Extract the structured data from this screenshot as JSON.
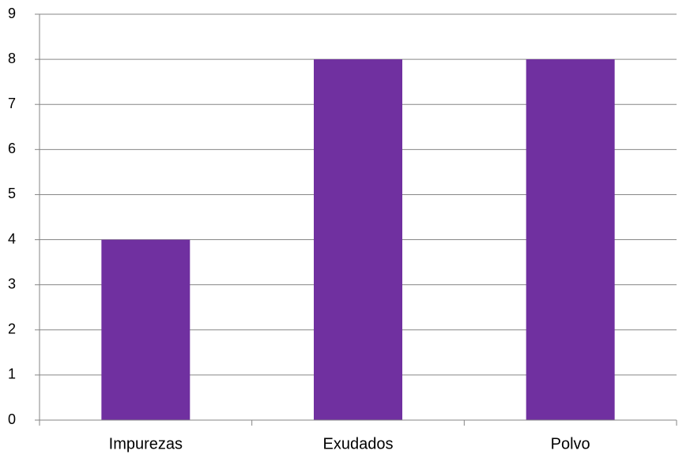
{
  "chart_data": {
    "type": "bar",
    "categories": [
      "Impurezas",
      "Exudados",
      "Polvo"
    ],
    "values": [
      4,
      8,
      8
    ],
    "ylim": [
      0,
      9
    ],
    "yticks": [
      "0",
      "1",
      "2",
      "3",
      "4",
      "5",
      "6",
      "7",
      "8",
      "9"
    ],
    "grid": true,
    "legend": "none",
    "colors": {
      "bar": "#7030a0",
      "grid": "#868686",
      "axis": "#868686"
    }
  }
}
